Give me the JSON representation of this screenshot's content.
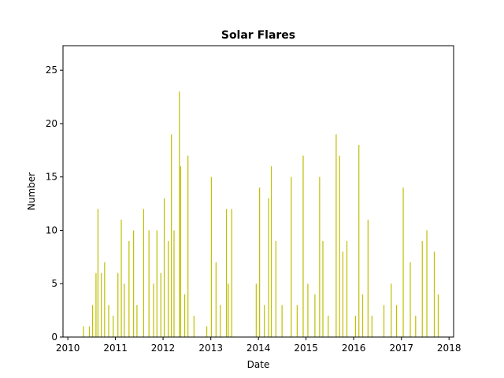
{
  "chart_data": {
    "type": "bar",
    "title": "Solar Flares",
    "xlabel": "Date",
    "ylabel": "Number",
    "bar_color": "#bfbf00",
    "xlim": [
      "2009-11-25",
      "2018-02-05"
    ],
    "ylim": [
      0,
      27.3
    ],
    "xticks": [
      "2010",
      "2011",
      "2012",
      "2013",
      "2014",
      "2015",
      "2016",
      "2017",
      "2018"
    ],
    "yticks": [
      0,
      5,
      10,
      15,
      20,
      25
    ],
    "grid": false,
    "legend": "none",
    "series": [
      {
        "x": [
          "2010-05-01",
          "2010-06-15",
          "2010-07-10",
          "2010-08-05",
          "2010-08-20",
          "2010-09-15",
          "2010-10-10",
          "2010-11-10",
          "2010-12-15",
          "2011-01-20",
          "2011-02-15",
          "2011-03-10",
          "2011-04-15",
          "2011-05-20",
          "2011-06-15",
          "2011-08-05",
          "2011-09-15",
          "2011-10-20",
          "2011-11-15",
          "2011-12-15",
          "2012-01-10",
          "2012-02-10",
          "2012-03-05",
          "2012-03-25",
          "2012-05-05",
          "2012-05-15",
          "2012-06-15",
          "2012-07-10",
          "2012-08-25",
          "2012-12-01",
          "2013-01-05",
          "2013-02-10",
          "2013-03-15",
          "2013-05-01",
          "2013-05-15",
          "2013-06-10",
          "2013-12-15",
          "2014-01-10",
          "2014-02-15",
          "2014-03-20",
          "2014-04-10",
          "2014-05-15",
          "2014-07-01",
          "2014-09-10",
          "2014-10-25",
          "2014-12-10",
          "2015-01-15",
          "2015-03-10",
          "2015-04-15",
          "2015-05-10",
          "2015-06-20",
          "2015-08-20",
          "2015-09-15",
          "2015-10-10",
          "2015-11-10",
          "2016-01-15",
          "2016-02-10",
          "2016-03-10",
          "2016-04-20",
          "2016-05-20",
          "2016-08-20",
          "2016-10-15",
          "2016-11-25",
          "2017-01-15",
          "2017-03-10",
          "2017-04-20",
          "2017-06-10",
          "2017-07-15",
          "2017-09-10",
          "2017-10-10"
        ],
        "values": [
          1,
          1,
          3,
          6,
          12,
          6,
          7,
          3,
          2,
          6,
          11,
          5,
          9,
          10,
          3,
          12,
          10,
          5,
          10,
          6,
          13,
          9,
          19,
          10,
          23,
          16,
          4,
          17,
          2,
          1,
          15,
          7,
          3,
          12,
          5,
          12,
          5,
          14,
          3,
          13,
          16,
          9,
          3,
          15,
          3,
          17,
          5,
          4,
          15,
          9,
          2,
          19,
          17,
          8,
          9,
          2,
          18,
          4,
          11,
          2,
          3,
          5,
          3,
          14,
          7,
          2,
          9,
          10,
          8,
          4
        ]
      }
    ]
  }
}
